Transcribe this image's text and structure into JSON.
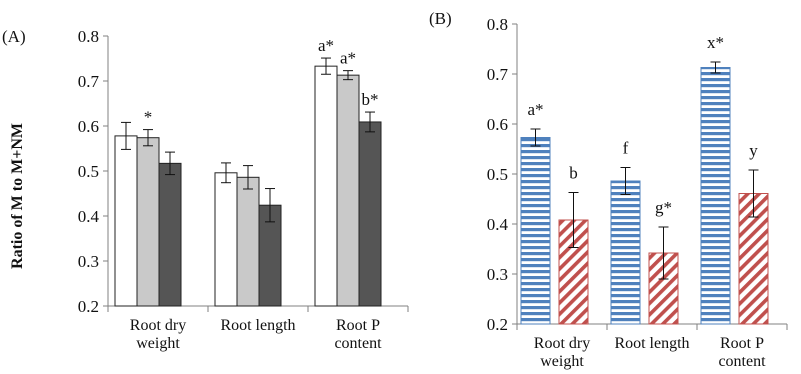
{
  "chart_data": [
    {
      "type": "bar",
      "panel_label": "(A)",
      "ylabel": "Ratio of M to M+NM",
      "ylim": [
        0.2,
        0.8
      ],
      "yticks": [
        "0.2",
        "0.3",
        "0.4",
        "0.5",
        "0.6",
        "0.7",
        "0.8"
      ],
      "categories": [
        [
          "Root dry",
          "weight"
        ],
        [
          "Root length"
        ],
        [
          "Root P",
          "content"
        ]
      ],
      "series": [
        {
          "color": "#ffffff",
          "values": [
            0.578,
            0.496,
            0.733
          ],
          "errors": [
            0.03,
            0.022,
            0.018
          ],
          "labels": [
            "",
            "",
            "a*"
          ]
        },
        {
          "color": "#c9c9c9",
          "values": [
            0.574,
            0.486,
            0.713
          ],
          "errors": [
            0.018,
            0.026,
            0.01
          ],
          "labels": [
            "*",
            "",
            "a*"
          ]
        },
        {
          "color": "#555555",
          "values": [
            0.517,
            0.424,
            0.609
          ],
          "errors": [
            0.025,
            0.037,
            0.022
          ],
          "labels": [
            "",
            "",
            "b*"
          ]
        }
      ]
    },
    {
      "type": "bar",
      "panel_label": "(B)",
      "ylim": [
        0.2,
        0.8
      ],
      "yticks": [
        "0.2",
        "0.3",
        "0.4",
        "0.5",
        "0.6",
        "0.7",
        "0.8"
      ],
      "categories": [
        [
          "Root dry",
          "weight"
        ],
        [
          "Root length"
        ],
        [
          "Root P",
          "content"
        ]
      ],
      "series": [
        {
          "color": "#4f81bd",
          "pattern": "horizontal-stripes",
          "values": [
            0.573,
            0.486,
            0.713
          ],
          "errors": [
            0.017,
            0.027,
            0.011
          ],
          "labels": [
            "a*",
            "f",
            "x*"
          ]
        },
        {
          "color": "#c0504d",
          "pattern": "diagonal-stripes",
          "values": [
            0.408,
            0.342,
            0.461
          ],
          "errors": [
            0.055,
            0.052,
            0.047
          ],
          "labels": [
            "b",
            "g*",
            "y"
          ]
        }
      ]
    }
  ]
}
